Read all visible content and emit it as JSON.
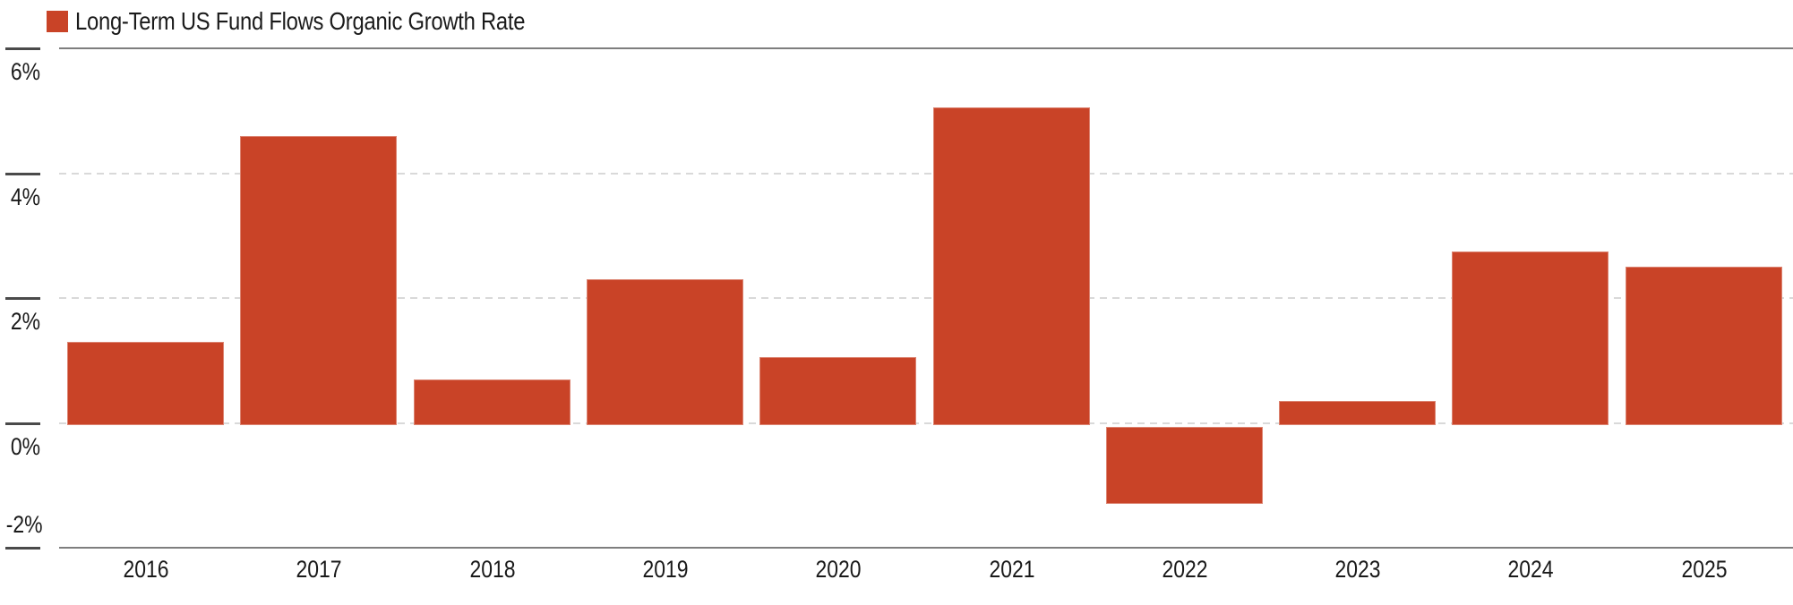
{
  "legend": {
    "label": "Long-Term US Fund Flows Organic Growth Rate"
  },
  "colors": {
    "bar": "#c94327",
    "axis_line": "#7e7e7e",
    "y_tick": "#4a4a4a",
    "gridline": "#d9d9d9",
    "text": "#1a1a1a",
    "background": "#ffffff"
  },
  "chart_data": {
    "type": "bar",
    "title": "",
    "xlabel": "",
    "ylabel": "",
    "unit": "%",
    "categories": [
      "2016",
      "2017",
      "2018",
      "2019",
      "2020",
      "2021",
      "2022",
      "2023",
      "2024",
      "2025"
    ],
    "series": [
      {
        "name": "Long-Term US Fund Flows Organic Growth Rate",
        "values": [
          1.3,
          4.6,
          0.7,
          2.3,
          1.05,
          5.05,
          -1.3,
          0.35,
          2.75,
          2.5
        ]
      }
    ],
    "ylim": [
      -2,
      6
    ],
    "yticks": [
      {
        "value": 6,
        "label": "6%"
      },
      {
        "value": 4,
        "label": "4%"
      },
      {
        "value": 2,
        "label": "2%"
      },
      {
        "value": 0,
        "label": "0%"
      },
      {
        "value": -2,
        "label": "-2%"
      }
    ],
    "grid": "horizontal dashed gridlines at 4%, 2% and 0%; solid boundary lines at 6% (top) and -2% (bottom)",
    "legend_position": "top-left"
  }
}
